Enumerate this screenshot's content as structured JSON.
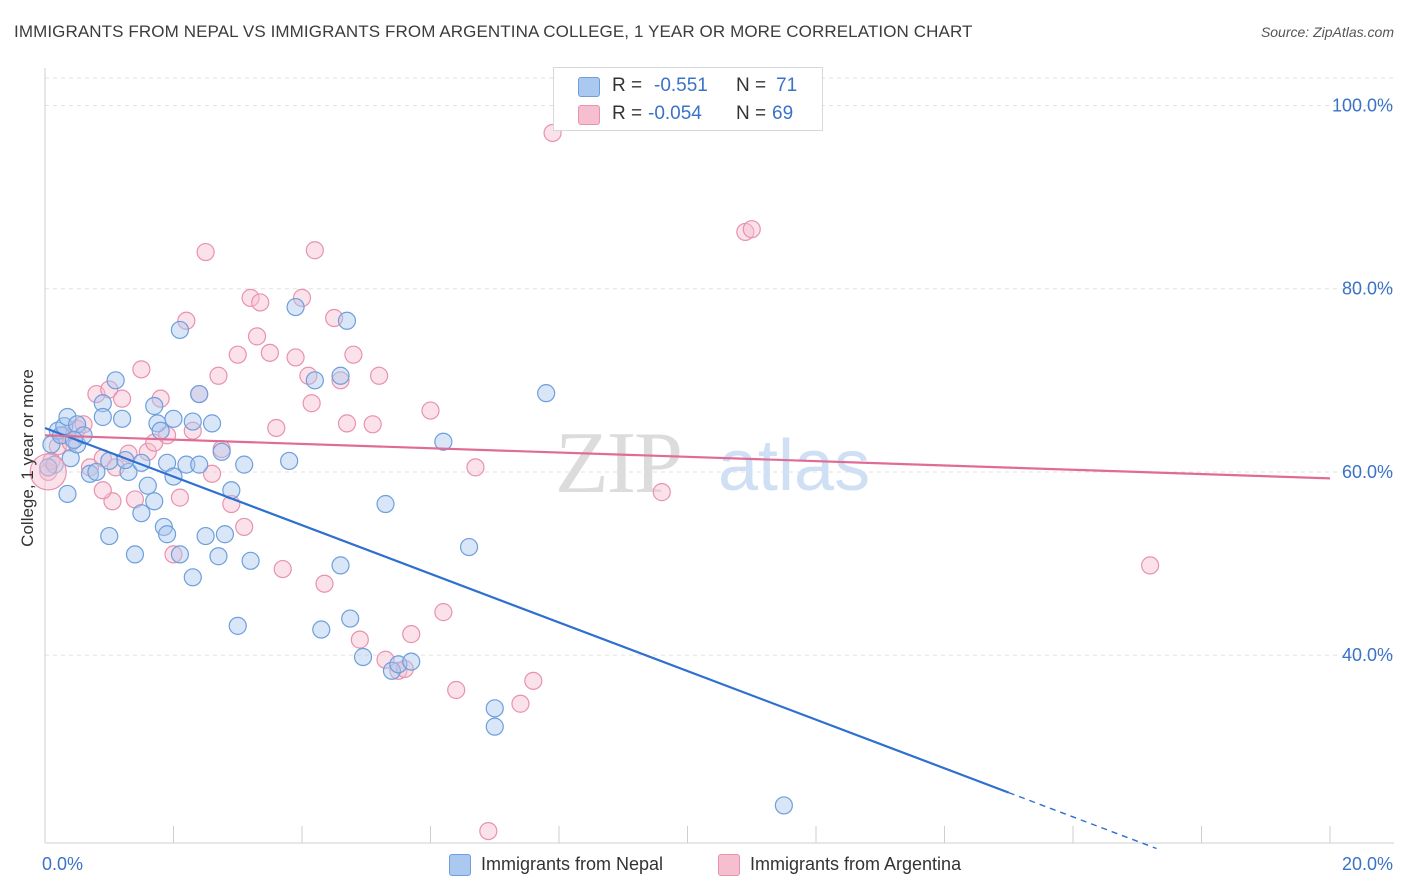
{
  "header": {
    "title": "IMMIGRANTS FROM NEPAL VS IMMIGRANTS FROM ARGENTINA COLLEGE, 1 YEAR OR MORE CORRELATION CHART",
    "source": "Source: ZipAtlas.com"
  },
  "legend": {
    "nepal": {
      "r_label": "R =",
      "r_value": "-0.551",
      "n_label": "N =",
      "n_value": "71"
    },
    "argentina": {
      "r_label": "R =",
      "r_value": "-0.054",
      "n_label": "N =",
      "n_value": "69"
    }
  },
  "bottom_legend": {
    "nepal": "Immigrants from Nepal",
    "argentina": "Immigrants from Argentina"
  },
  "colors": {
    "nepal_fill": "#aac8f0",
    "nepal_stroke": "#6d9fdc",
    "nepal_line": "#2f6fd0",
    "argentina_fill": "#f6bfd0",
    "argentina_stroke": "#e892ae",
    "argentina_line": "#e06c96",
    "tick_label": "#3a72c8",
    "grid": "#e2e2e2"
  },
  "watermark": {
    "part1": "ZIP",
    "part2": "atlas"
  },
  "chart_data": {
    "type": "scatter",
    "title": "IMMIGRANTS FROM NEPAL VS IMMIGRANTS FROM ARGENTINA COLLEGE, 1 YEAR OR MORE CORRELATION CHART",
    "xlabel": "",
    "ylabel": "College, 1 year or more",
    "xlim": [
      0,
      20
    ],
    "ylim": [
      0.195,
      1.03
    ],
    "x_tick_labels": [
      "0.0%",
      "20.0%"
    ],
    "y_ticks": [
      0.4,
      0.6,
      0.8,
      1.0
    ],
    "y_tick_labels": [
      "40.0%",
      "60.0%",
      "80.0%",
      "100.0%"
    ],
    "series": [
      {
        "name": "Immigrants from Nepal",
        "r": -0.551,
        "n": 71,
        "trend": {
          "x0": 0.0,
          "y0": 0.648,
          "x1": 15.0,
          "y1": 0.25,
          "dash_to_x": 17.3
        },
        "points": [
          [
            0.1,
            0.63
          ],
          [
            0.15,
            0.608
          ],
          [
            0.2,
            0.645
          ],
          [
            0.25,
            0.64
          ],
          [
            0.3,
            0.65
          ],
          [
            0.35,
            0.576
          ],
          [
            0.35,
            0.66
          ],
          [
            0.4,
            0.615
          ],
          [
            0.5,
            0.63
          ],
          [
            0.5,
            0.652
          ],
          [
            0.6,
            0.64
          ],
          [
            0.7,
            0.598
          ],
          [
            0.8,
            0.6
          ],
          [
            0.9,
            0.675
          ],
          [
            0.9,
            0.66
          ],
          [
            1.0,
            0.53
          ],
          [
            1.0,
            0.612
          ],
          [
            1.1,
            0.7
          ],
          [
            1.2,
            0.658
          ],
          [
            1.3,
            0.6
          ],
          [
            1.4,
            0.51
          ],
          [
            1.5,
            0.555
          ],
          [
            1.5,
            0.61
          ],
          [
            1.6,
            0.585
          ],
          [
            1.7,
            0.568
          ],
          [
            1.7,
            0.672
          ],
          [
            1.75,
            0.653
          ],
          [
            1.8,
            0.645
          ],
          [
            1.85,
            0.54
          ],
          [
            1.9,
            0.532
          ],
          [
            1.9,
            0.61
          ],
          [
            2.0,
            0.658
          ],
          [
            2.0,
            0.595
          ],
          [
            2.1,
            0.755
          ],
          [
            2.1,
            0.51
          ],
          [
            2.2,
            0.608
          ],
          [
            2.3,
            0.485
          ],
          [
            2.3,
            0.655
          ],
          [
            2.4,
            0.608
          ],
          [
            2.4,
            0.685
          ],
          [
            2.5,
            0.53
          ],
          [
            2.6,
            0.653
          ],
          [
            2.7,
            0.508
          ],
          [
            2.75,
            0.622
          ],
          [
            2.8,
            0.532
          ],
          [
            2.9,
            0.58
          ],
          [
            3.0,
            0.432
          ],
          [
            3.1,
            0.608
          ],
          [
            3.2,
            0.503
          ],
          [
            3.8,
            0.612
          ],
          [
            3.9,
            0.78
          ],
          [
            4.2,
            0.7
          ],
          [
            4.3,
            0.428
          ],
          [
            4.6,
            0.705
          ],
          [
            4.6,
            0.498
          ],
          [
            4.7,
            0.765
          ],
          [
            4.75,
            0.44
          ],
          [
            4.95,
            0.398
          ],
          [
            5.3,
            0.565
          ],
          [
            5.4,
            0.383
          ],
          [
            5.5,
            0.39
          ],
          [
            5.7,
            0.393
          ],
          [
            6.2,
            0.633
          ],
          [
            6.6,
            0.518
          ],
          [
            7.0,
            0.342
          ],
          [
            7.0,
            0.322
          ],
          [
            7.8,
            0.686
          ],
          [
            11.5,
            0.236
          ],
          [
            0.05,
            0.605
          ],
          [
            0.45,
            0.635
          ],
          [
            1.25,
            0.613
          ]
        ]
      },
      {
        "name": "Immigrants from Argentina",
        "r": -0.054,
        "n": 69,
        "trend": {
          "x0": 0.0,
          "y0": 0.64,
          "x1": 20.0,
          "y1": 0.593
        },
        "points": [
          [
            0.05,
            0.6
          ],
          [
            0.1,
            0.612
          ],
          [
            0.2,
            0.628
          ],
          [
            0.3,
            0.64
          ],
          [
            0.4,
            0.632
          ],
          [
            0.5,
            0.647
          ],
          [
            0.6,
            0.652
          ],
          [
            0.7,
            0.605
          ],
          [
            0.8,
            0.685
          ],
          [
            0.9,
            0.615
          ],
          [
            1.0,
            0.69
          ],
          [
            1.05,
            0.568
          ],
          [
            1.1,
            0.605
          ],
          [
            1.2,
            0.68
          ],
          [
            1.3,
            0.62
          ],
          [
            1.4,
            0.57
          ],
          [
            1.5,
            0.712
          ],
          [
            1.6,
            0.622
          ],
          [
            1.7,
            0.632
          ],
          [
            1.8,
            0.68
          ],
          [
            1.9,
            0.64
          ],
          [
            2.0,
            0.51
          ],
          [
            2.1,
            0.572
          ],
          [
            2.2,
            0.765
          ],
          [
            2.3,
            0.645
          ],
          [
            2.4,
            0.685
          ],
          [
            2.5,
            0.84
          ],
          [
            2.6,
            0.598
          ],
          [
            2.7,
            0.705
          ],
          [
            2.75,
            0.625
          ],
          [
            2.9,
            0.565
          ],
          [
            3.0,
            0.728
          ],
          [
            3.1,
            0.54
          ],
          [
            3.2,
            0.79
          ],
          [
            3.3,
            0.748
          ],
          [
            3.35,
            0.785
          ],
          [
            3.5,
            0.73
          ],
          [
            3.6,
            0.648
          ],
          [
            3.7,
            0.494
          ],
          [
            3.9,
            0.725
          ],
          [
            4.0,
            0.79
          ],
          [
            4.1,
            0.705
          ],
          [
            4.15,
            0.675
          ],
          [
            4.2,
            0.842
          ],
          [
            4.35,
            0.478
          ],
          [
            4.5,
            0.768
          ],
          [
            4.6,
            0.7
          ],
          [
            4.7,
            0.653
          ],
          [
            4.8,
            0.728
          ],
          [
            4.9,
            0.417
          ],
          [
            5.1,
            0.652
          ],
          [
            5.2,
            0.705
          ],
          [
            5.3,
            0.395
          ],
          [
            5.5,
            0.383
          ],
          [
            5.6,
            0.385
          ],
          [
            5.7,
            0.423
          ],
          [
            6.0,
            0.667
          ],
          [
            6.2,
            0.447
          ],
          [
            6.4,
            0.362
          ],
          [
            6.7,
            0.605
          ],
          [
            6.9,
            0.208
          ],
          [
            7.4,
            0.347
          ],
          [
            7.6,
            0.372
          ],
          [
            7.9,
            0.97
          ],
          [
            9.6,
            0.578
          ],
          [
            10.9,
            0.862
          ],
          [
            11.0,
            0.865
          ],
          [
            17.2,
            0.498
          ],
          [
            0.9,
            0.58
          ]
        ]
      }
    ]
  }
}
